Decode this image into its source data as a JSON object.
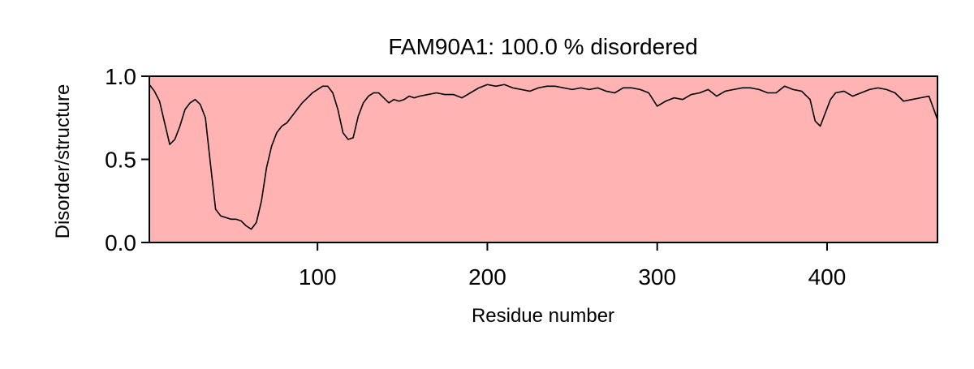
{
  "chart_data": {
    "type": "area",
    "title": "FAM90A1: 100.0 % disordered",
    "xlabel": "Residue number",
    "ylabel": "Disorder/structure",
    "xlim": [
      1,
      465
    ],
    "ylim": [
      0.0,
      1.0
    ],
    "x_ticks": [
      100,
      200,
      300,
      400
    ],
    "y_ticks": [
      0.0,
      0.5,
      1.0
    ],
    "x_tick_labels": [
      "100",
      "200",
      "300",
      "400"
    ],
    "y_tick_labels": [
      "0.0",
      "0.5",
      "1.0"
    ],
    "grid": false,
    "colors": {
      "background_region": "#ffb3b3",
      "line": "#000000",
      "axes": "#000000"
    },
    "series": [
      {
        "x": [
          1,
          4,
          7,
          10,
          13,
          16,
          19,
          22,
          25,
          28,
          31,
          34,
          37,
          40,
          43,
          46,
          49,
          52,
          55,
          58,
          61,
          64,
          67,
          70,
          73,
          76,
          79,
          82,
          85,
          88,
          91,
          94,
          97,
          100,
          103,
          106,
          109,
          112,
          115,
          118,
          121,
          124,
          127,
          130,
          133,
          136,
          139,
          142,
          145,
          148,
          151,
          154,
          157,
          160,
          165,
          170,
          175,
          180,
          185,
          190,
          195,
          200,
          205,
          210,
          215,
          220,
          225,
          230,
          235,
          240,
          245,
          250,
          255,
          260,
          265,
          270,
          275,
          280,
          285,
          290,
          295,
          300,
          305,
          310,
          315,
          320,
          325,
          330,
          335,
          340,
          345,
          350,
          355,
          360,
          365,
          370,
          375,
          380,
          385,
          390,
          393,
          396,
          399,
          402,
          405,
          410,
          415,
          420,
          425,
          430,
          435,
          440,
          445,
          450,
          455,
          460,
          465
        ],
        "y": [
          0.95,
          0.91,
          0.85,
          0.72,
          0.59,
          0.62,
          0.7,
          0.8,
          0.84,
          0.86,
          0.83,
          0.75,
          0.47,
          0.2,
          0.16,
          0.15,
          0.14,
          0.14,
          0.13,
          0.1,
          0.08,
          0.12,
          0.25,
          0.45,
          0.58,
          0.66,
          0.7,
          0.72,
          0.76,
          0.8,
          0.84,
          0.87,
          0.9,
          0.92,
          0.94,
          0.94,
          0.9,
          0.8,
          0.66,
          0.62,
          0.63,
          0.76,
          0.84,
          0.88,
          0.9,
          0.9,
          0.87,
          0.84,
          0.86,
          0.85,
          0.86,
          0.88,
          0.87,
          0.88,
          0.89,
          0.9,
          0.89,
          0.89,
          0.87,
          0.9,
          0.93,
          0.95,
          0.94,
          0.95,
          0.93,
          0.92,
          0.91,
          0.93,
          0.94,
          0.94,
          0.93,
          0.92,
          0.93,
          0.92,
          0.93,
          0.91,
          0.9,
          0.93,
          0.93,
          0.92,
          0.9,
          0.82,
          0.85,
          0.87,
          0.86,
          0.89,
          0.9,
          0.92,
          0.88,
          0.91,
          0.92,
          0.93,
          0.93,
          0.92,
          0.9,
          0.9,
          0.94,
          0.92,
          0.91,
          0.86,
          0.73,
          0.7,
          0.78,
          0.86,
          0.9,
          0.91,
          0.88,
          0.9,
          0.92,
          0.93,
          0.92,
          0.9,
          0.85,
          0.86,
          0.87,
          0.88,
          0.74
        ]
      }
    ]
  }
}
